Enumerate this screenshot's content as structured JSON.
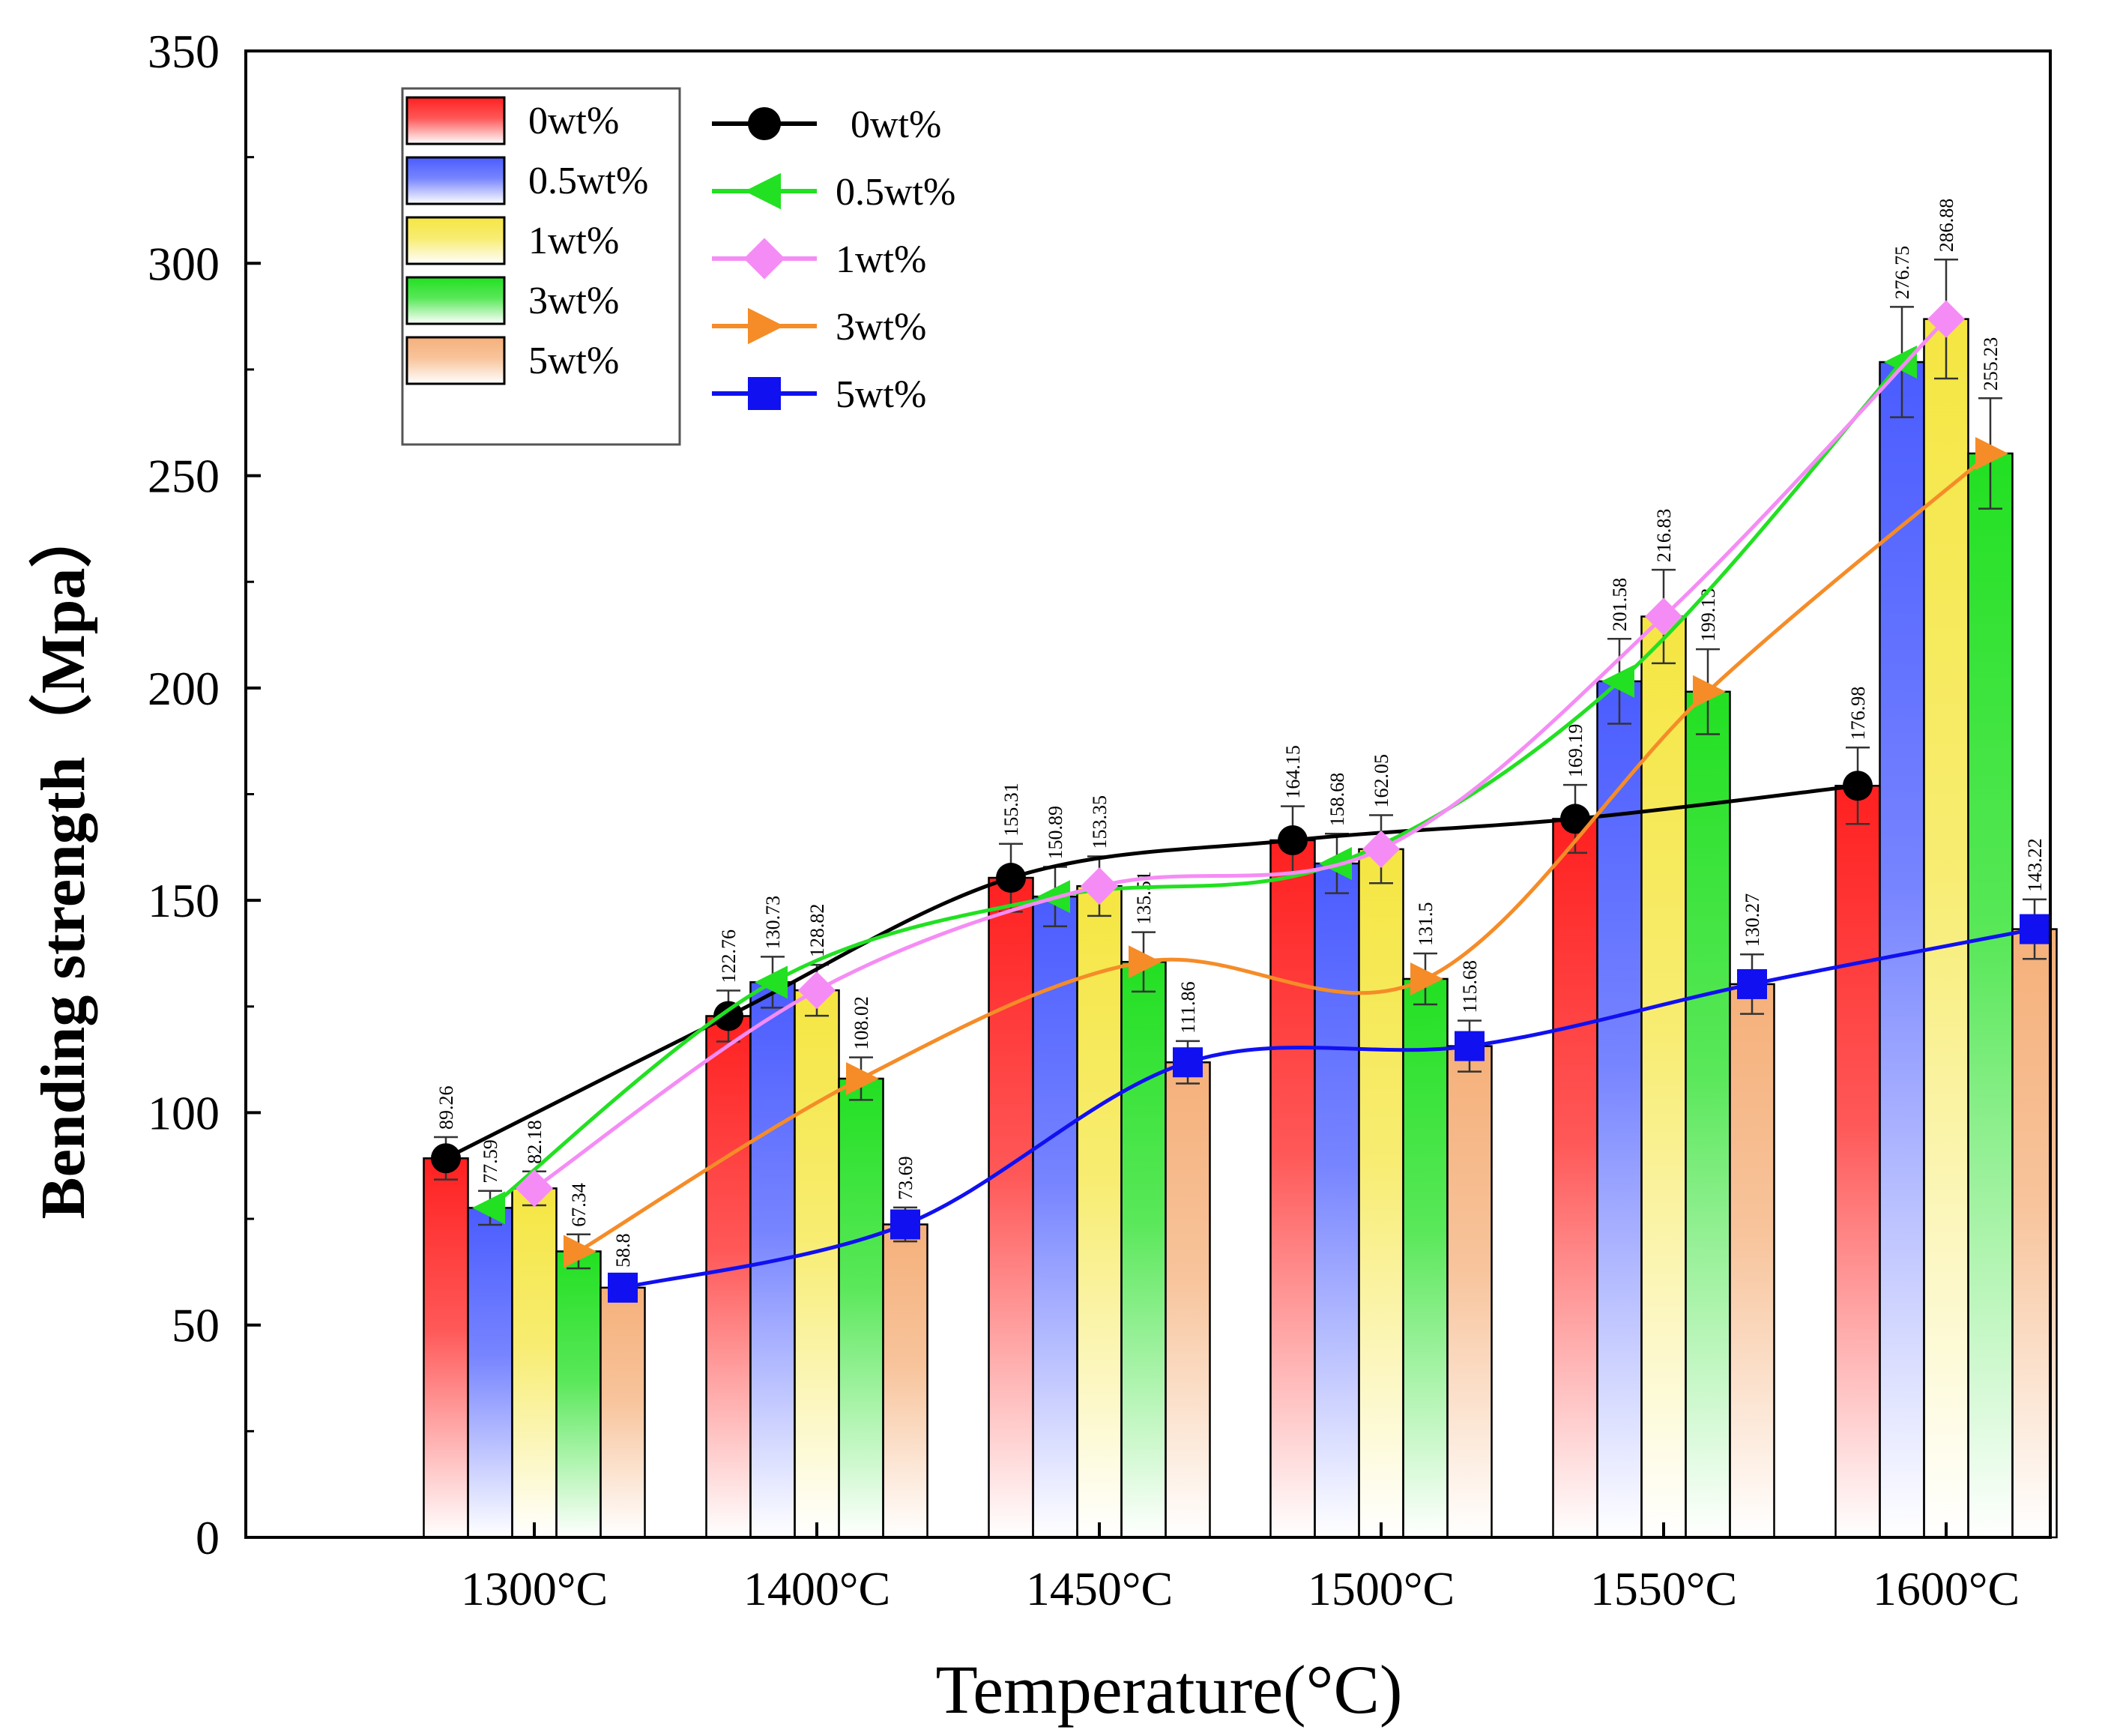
{
  "chart_data": {
    "type": "bar",
    "title": "",
    "xlabel": "Temperature(°C)",
    "ylabel": "Bending strength（Mpa）",
    "ylim": [
      0,
      350
    ],
    "yticks": [
      0,
      50,
      100,
      150,
      200,
      250,
      300,
      350
    ],
    "categories": [
      "1300°C",
      "1400°C",
      "1450°C",
      "1500°C",
      "1550°C",
      "1600°C"
    ],
    "series": [
      {
        "name": "0wt%",
        "bar_color": "#ff2020",
        "line_color": "#000000",
        "marker": "circle",
        "values": [
          89.26,
          122.76,
          155.31,
          164.15,
          169.19,
          176.98
        ],
        "labels": [
          "89.26",
          "122.76",
          "155.31",
          "164.15",
          "169.19",
          "176.98"
        ],
        "errors": [
          5,
          6,
          8,
          8,
          8,
          9
        ]
      },
      {
        "name": "0.5wt%",
        "bar_color": "#4a5cff",
        "line_color": "#22e022",
        "marker": "triangle-left",
        "values": [
          77.59,
          130.73,
          150.89,
          158.68,
          201.58,
          276.75
        ],
        "labels": [
          "77.59",
          "130.73",
          "150.89",
          "158.68",
          "201.58",
          "276.75"
        ],
        "errors": [
          4,
          6,
          7,
          7,
          10,
          13
        ]
      },
      {
        "name": "1wt%",
        "bar_color": "#f5e642",
        "line_color": "#f58cf5",
        "marker": "diamond",
        "values": [
          82.18,
          128.82,
          153.35,
          162.05,
          216.83,
          286.88
        ],
        "labels": [
          "82.18",
          "128.82",
          "153.35",
          "162.05",
          "216.83",
          "286.88"
        ],
        "errors": [
          4,
          6,
          7,
          8,
          11,
          14
        ]
      },
      {
        "name": "3wt%",
        "bar_color": "#22e022",
        "line_color": "#f58c28",
        "marker": "triangle-right",
        "values": [
          67.34,
          108.02,
          135.51,
          131.5,
          199.13,
          255.23
        ],
        "labels": [
          "67.34",
          "108.02",
          "135.51",
          "131.5",
          "199.13",
          "255.23"
        ],
        "errors": [
          4,
          5,
          7,
          6,
          10,
          13
        ]
      },
      {
        "name": "5wt%",
        "bar_color": "#f5b07a",
        "line_color": "#1010f0",
        "marker": "square",
        "values": [
          58.8,
          73.69,
          111.86,
          115.68,
          130.27,
          143.22
        ],
        "labels": [
          "58.8",
          "73.69",
          "111.86",
          "115.68",
          "130.27",
          "143.22"
        ],
        "errors": [
          3,
          4,
          5,
          6,
          7,
          7
        ]
      }
    ],
    "legend_bars_placement": "top-left",
    "legend_lines_placement": "top-left"
  }
}
